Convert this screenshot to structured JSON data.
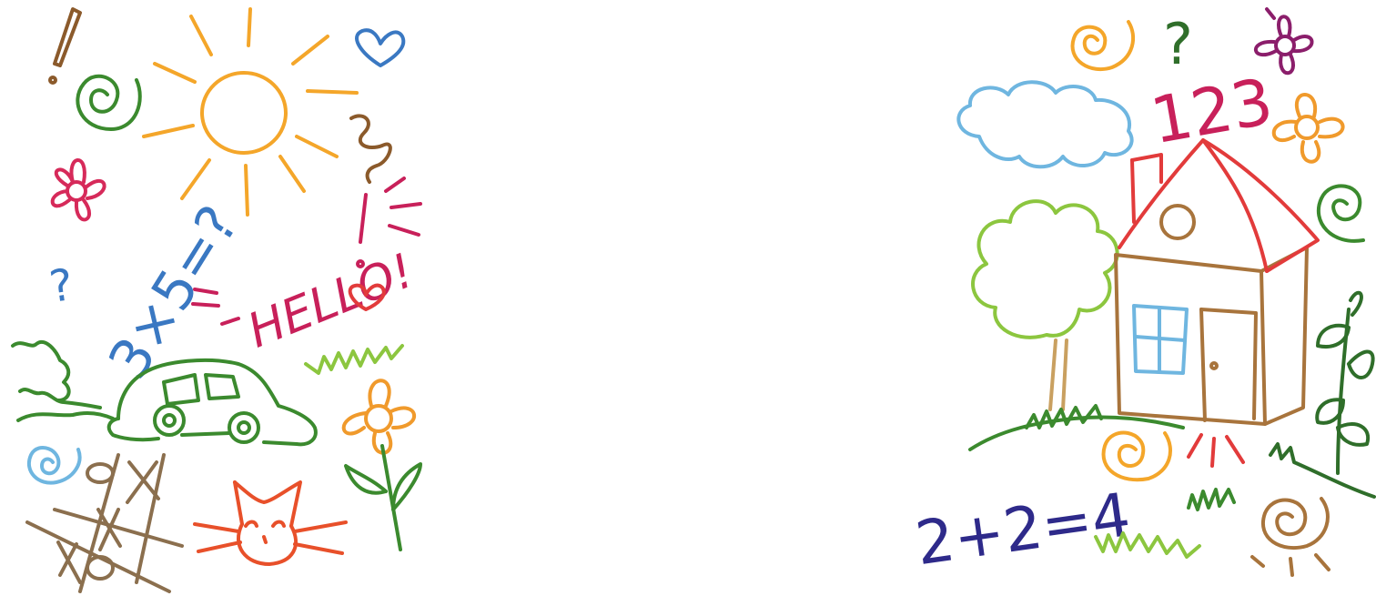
{
  "scene": {
    "description_free": true,
    "left_doodles": {
      "hello_text": "HELLO!",
      "math_text": "3×5=?",
      "question_mark": "?"
    },
    "right_doodles": {
      "count_text": "123",
      "sum_text": "2+2=4",
      "question_mark": "?"
    }
  },
  "palette": {
    "orange": "#f4a62a",
    "green": "#3b8a2e",
    "lime": "#8cc63f",
    "blue": "#3a78c2",
    "lightblue": "#6fb6e0",
    "red": "#e23b3b",
    "magenta": "#c8205a",
    "brown": "#8b5a2b",
    "tan": "#b8864a",
    "purple": "#2e2a8a",
    "plum": "#8b1e6b",
    "darkgreen": "#2f6e2a"
  }
}
